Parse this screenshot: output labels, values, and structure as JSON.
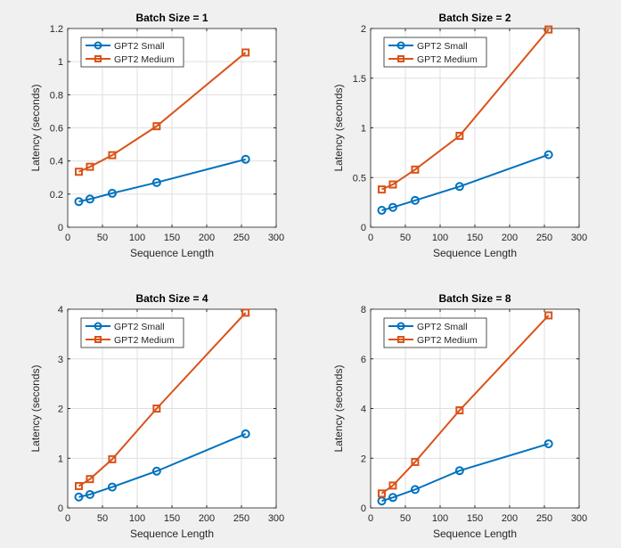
{
  "chart_data": [
    {
      "type": "line",
      "title": "Batch Size = 1",
      "xlabel": "Sequence Length",
      "ylabel": "Latency (seconds)",
      "xlim": [
        0,
        300
      ],
      "ylim": [
        0,
        1.2
      ],
      "xticks": [
        0,
        50,
        100,
        150,
        200,
        250,
        300
      ],
      "yticks": [
        0,
        0.2,
        0.4,
        0.6,
        0.8,
        1,
        1.2
      ],
      "ytick_labels": [
        "0",
        "0.2",
        "0.4",
        "0.6",
        "0.8",
        "1",
        "1.2"
      ],
      "grid": true,
      "legend": "top-left",
      "x": [
        16,
        32,
        64,
        128,
        256
      ],
      "series": [
        {
          "name": "GPT2 Small",
          "marker": "circle",
          "color": "#0072bd",
          "values": [
            0.155,
            0.17,
            0.205,
            0.27,
            0.41
          ]
        },
        {
          "name": "GPT2 Medium",
          "marker": "square",
          "color": "#d95319",
          "values": [
            0.335,
            0.365,
            0.435,
            0.61,
            1.055
          ]
        }
      ]
    },
    {
      "type": "line",
      "title": "Batch Size = 2",
      "xlabel": "Sequence Length",
      "ylabel": "Latency (seconds)",
      "xlim": [
        0,
        300
      ],
      "ylim": [
        0,
        2
      ],
      "xticks": [
        0,
        50,
        100,
        150,
        200,
        250,
        300
      ],
      "yticks": [
        0,
        0.5,
        1,
        1.5,
        2
      ],
      "ytick_labels": [
        "0",
        "0.5",
        "1",
        "1.5",
        "2"
      ],
      "grid": true,
      "legend": "top-left",
      "x": [
        16,
        32,
        64,
        128,
        256
      ],
      "series": [
        {
          "name": "GPT2 Small",
          "marker": "circle",
          "color": "#0072bd",
          "values": [
            0.17,
            0.2,
            0.27,
            0.41,
            0.73
          ]
        },
        {
          "name": "GPT2 Medium",
          "marker": "square",
          "color": "#d95319",
          "values": [
            0.38,
            0.43,
            0.58,
            0.92,
            1.99
          ]
        }
      ]
    },
    {
      "type": "line",
      "title": "Batch Size = 4",
      "xlabel": "Sequence Length",
      "ylabel": "Latency (seconds)",
      "xlim": [
        0,
        300
      ],
      "ylim": [
        0,
        4
      ],
      "xticks": [
        0,
        50,
        100,
        150,
        200,
        250,
        300
      ],
      "yticks": [
        0,
        1,
        2,
        3,
        4
      ],
      "ytick_labels": [
        "0",
        "1",
        "2",
        "3",
        "4"
      ],
      "grid": true,
      "legend": "top-left",
      "x": [
        16,
        32,
        64,
        128,
        256
      ],
      "series": [
        {
          "name": "GPT2 Small",
          "marker": "circle",
          "color": "#0072bd",
          "values": [
            0.22,
            0.27,
            0.42,
            0.74,
            1.49
          ]
        },
        {
          "name": "GPT2 Medium",
          "marker": "square",
          "color": "#d95319",
          "values": [
            0.44,
            0.58,
            0.98,
            2.0,
            3.93
          ]
        }
      ]
    },
    {
      "type": "line",
      "title": "Batch Size = 8",
      "xlabel": "Sequence Length",
      "ylabel": "Latency (seconds)",
      "xlim": [
        0,
        300
      ],
      "ylim": [
        0,
        8
      ],
      "xticks": [
        0,
        50,
        100,
        150,
        200,
        250,
        300
      ],
      "yticks": [
        0,
        2,
        4,
        6,
        8
      ],
      "ytick_labels": [
        "0",
        "2",
        "4",
        "6",
        "8"
      ],
      "grid": true,
      "legend": "top-left",
      "x": [
        16,
        32,
        64,
        128,
        256
      ],
      "series": [
        {
          "name": "GPT2 Small",
          "marker": "circle",
          "color": "#0072bd",
          "values": [
            0.28,
            0.42,
            0.74,
            1.5,
            2.58
          ]
        },
        {
          "name": "GPT2 Medium",
          "marker": "square",
          "color": "#d95319",
          "values": [
            0.58,
            0.9,
            1.85,
            3.93,
            7.75
          ]
        }
      ]
    }
  ]
}
